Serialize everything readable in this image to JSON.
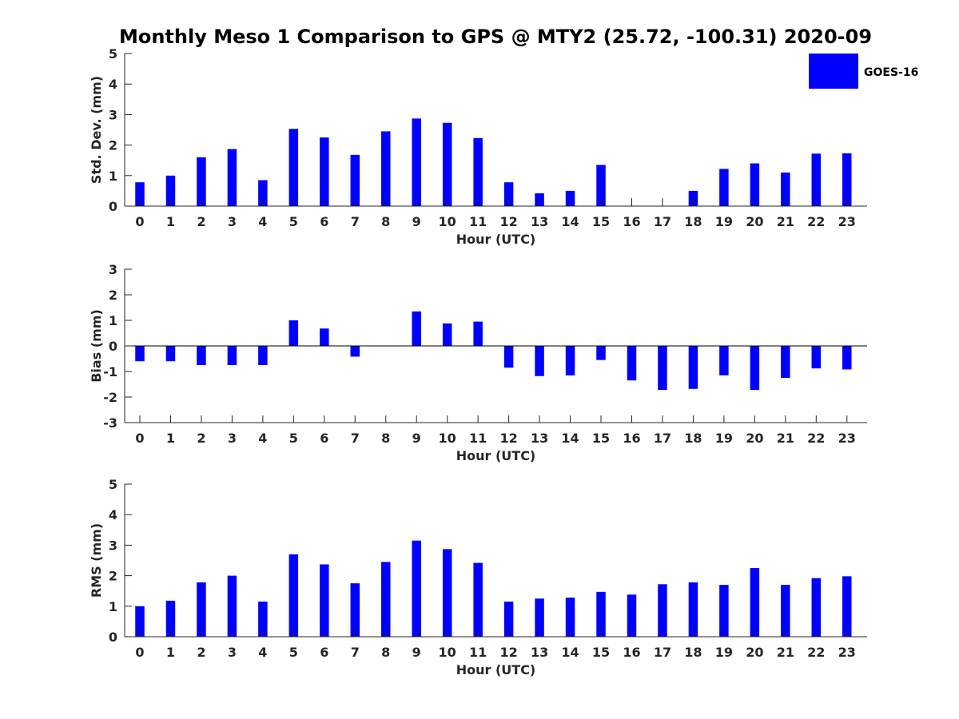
{
  "figure": {
    "title": "Monthly Meso 1 Comparison to GPS @ MTY2 (25.72, -100.31) 2020-09",
    "legend": {
      "label": "GOES-16",
      "placement": "top-right",
      "color": "#0000ff"
    }
  },
  "chart_data": [
    {
      "type": "bar",
      "xlabel": "Hour (UTC)",
      "ylabel": "Std. Dev. (mm)",
      "categories": [
        "0",
        "1",
        "2",
        "3",
        "4",
        "5",
        "6",
        "7",
        "8",
        "9",
        "10",
        "11",
        "12",
        "13",
        "14",
        "15",
        "16",
        "17",
        "18",
        "19",
        "20",
        "21",
        "22",
        "23"
      ],
      "yticks": [
        "0",
        "1",
        "2",
        "3",
        "4",
        "5"
      ],
      "ylim": [
        0,
        5
      ],
      "grid": false,
      "series": [
        {
          "name": "GOES-16",
          "color": "#0000ff",
          "values": [
            0.78,
            1.0,
            1.6,
            1.87,
            0.85,
            2.53,
            2.25,
            1.68,
            2.45,
            2.87,
            2.73,
            2.23,
            0.78,
            0.42,
            0.5,
            1.35,
            0,
            0,
            0.5,
            1.22,
            1.4,
            1.1,
            1.72,
            1.73
          ]
        }
      ]
    },
    {
      "type": "bar",
      "xlabel": "Hour (UTC)",
      "ylabel": "Bias (mm)",
      "categories": [
        "0",
        "1",
        "2",
        "3",
        "4",
        "5",
        "6",
        "7",
        "8",
        "9",
        "10",
        "11",
        "12",
        "13",
        "14",
        "15",
        "16",
        "17",
        "18",
        "19",
        "20",
        "21",
        "22",
        "23"
      ],
      "yticks": [
        "-3",
        "-2",
        "-1",
        "0",
        "1",
        "2",
        "3"
      ],
      "ylim": [
        -3,
        3
      ],
      "grid": false,
      "series": [
        {
          "name": "GOES-16",
          "color": "#0000ff",
          "values": [
            -0.6,
            -0.6,
            -0.75,
            -0.75,
            -0.75,
            1.0,
            0.68,
            -0.42,
            0.0,
            1.35,
            0.88,
            0.95,
            -0.85,
            -1.18,
            -1.15,
            -0.55,
            -1.35,
            -1.72,
            -1.68,
            -1.15,
            -1.72,
            -1.25,
            -0.88,
            -0.92
          ]
        }
      ]
    },
    {
      "type": "bar",
      "xlabel": "Hour (UTC)",
      "ylabel": "RMS (mm)",
      "categories": [
        "0",
        "1",
        "2",
        "3",
        "4",
        "5",
        "6",
        "7",
        "8",
        "9",
        "10",
        "11",
        "12",
        "13",
        "14",
        "15",
        "16",
        "17",
        "18",
        "19",
        "20",
        "21",
        "22",
        "23"
      ],
      "yticks": [
        "0",
        "1",
        "2",
        "3",
        "4",
        "5"
      ],
      "ylim": [
        0,
        5
      ],
      "grid": false,
      "series": [
        {
          "name": "GOES-16",
          "color": "#0000ff",
          "values": [
            1.0,
            1.18,
            1.78,
            2.0,
            1.15,
            2.7,
            2.37,
            1.75,
            2.45,
            3.15,
            2.87,
            2.42,
            1.15,
            1.25,
            1.28,
            1.47,
            1.38,
            1.72,
            1.78,
            1.7,
            2.25,
            1.7,
            1.92,
            1.98
          ]
        }
      ]
    }
  ]
}
